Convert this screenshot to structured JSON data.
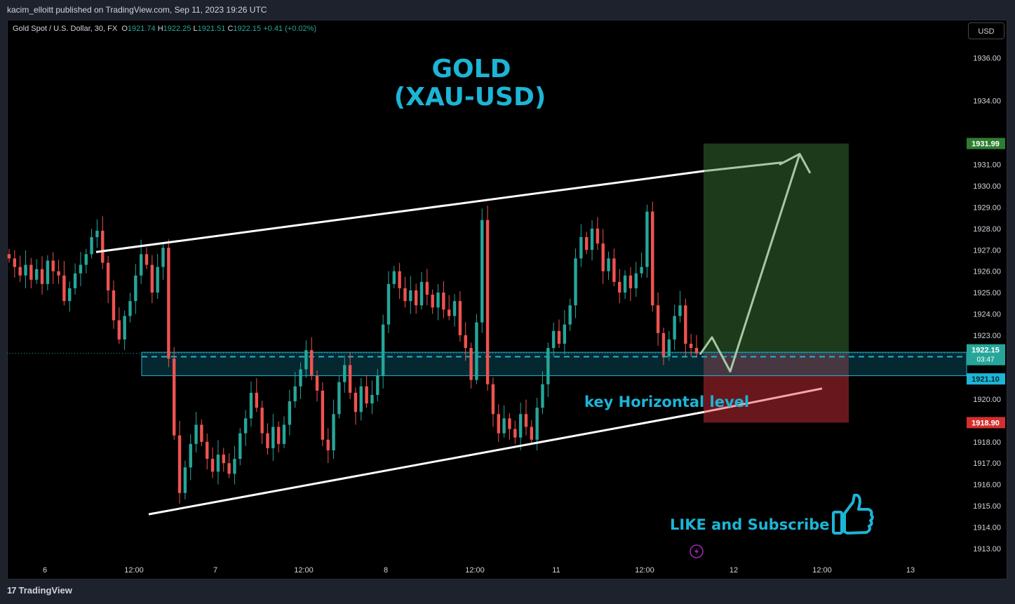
{
  "header": {
    "publisher": "kacim_elloitt published on TradingView.com, Sep 11, 2023 19:26 UTC"
  },
  "legend": {
    "symbol": "Gold Spot / U.S. Dollar, 30, FX",
    "o_label": "O",
    "o": "1921.74",
    "h_label": "H",
    "h": "1922.25",
    "l_label": "L",
    "l": "1921.51",
    "c_label": "C",
    "c": "1922.15",
    "change": "+0.41 (+0.02%)"
  },
  "currency_button": "USD",
  "footer": {
    "brand": "TradingView",
    "brand_mark": "17"
  },
  "annotations": {
    "title_line1": "GOLD",
    "title_line2": "(XAU-USD)",
    "key_level": "key Horizontal level",
    "like": "LIKE and Subscribe"
  },
  "colors": {
    "up": "#26a69a",
    "down": "#ef5350",
    "accent": "#1cb5d6",
    "background": "#000000"
  },
  "chart_data": {
    "type": "candlestick",
    "timeframe": "30",
    "y_ticks": [
      1913,
      1914,
      1915,
      1916,
      1917,
      1918,
      1919,
      1920,
      1921,
      1922,
      1923,
      1924,
      1925,
      1926,
      1927,
      1928,
      1929,
      1930,
      1931,
      1932,
      1933,
      1934,
      1935,
      1936
    ],
    "y_tick_labels": [
      "1913.00",
      "1914.00",
      "1915.00",
      "1916.00",
      "1917.00",
      "1918.00",
      "",
      "1920.00",
      "",
      "",
      "1923.00",
      "1924.00",
      "1925.00",
      "1926.00",
      "1927.00",
      "1928.00",
      "1929.00",
      "1930.00",
      "1931.00",
      "",
      "",
      "1934.00",
      "",
      "1936.00"
    ],
    "ylim": [
      1912.4,
      1937.8
    ],
    "x_ticks": [
      "6",
      "12:00",
      "7",
      "12:00",
      "8",
      "12:00",
      "11",
      "12:00",
      "12",
      "12:00",
      "13"
    ],
    "price_labels": {
      "target": "1931.99",
      "last": "1922.15",
      "countdown": "03:47",
      "level": "1921.99",
      "zone_low": "1921.10",
      "stop": "1918.90"
    },
    "price_levels": {
      "target": 1931.99,
      "last": 1922.15,
      "level": 1921.99,
      "zone_top": 1922.2,
      "zone_low": 1921.1,
      "stop": 1918.9
    },
    "channel": {
      "upper": [
        [
          1926.9,
          1930.7
        ]
      ],
      "lower": [
        [
          1914.6,
          1919.4
        ]
      ]
    },
    "closes": [
      1926.6,
      1926.2,
      1925.8,
      1926.3,
      1925.6,
      1926.1,
      1925.4,
      1926.5,
      1926.0,
      1925.8,
      1924.6,
      1925.2,
      1925.9,
      1926.3,
      1926.8,
      1927.6,
      1927.9,
      1926.4,
      1925.1,
      1923.7,
      1922.8,
      1923.9,
      1924.6,
      1925.8,
      1926.8,
      1926.3,
      1925.0,
      1926.2,
      1927.1,
      1921.9,
      1918.3,
      1915.6,
      1916.8,
      1917.9,
      1918.8,
      1918.0,
      1917.2,
      1916.6,
      1917.4,
      1917.0,
      1916.5,
      1917.2,
      1918.4,
      1919.1,
      1920.3,
      1919.6,
      1918.4,
      1917.7,
      1918.7,
      1917.9,
      1918.8,
      1919.9,
      1920.6,
      1921.4,
      1922.3,
      1921.1,
      1920.4,
      1918.1,
      1917.6,
      1919.3,
      1920.8,
      1921.6,
      1920.3,
      1919.4,
      1920.6,
      1919.8,
      1920.2,
      1921.1,
      1923.5,
      1925.4,
      1926.0,
      1925.2,
      1924.6,
      1925.1,
      1924.4,
      1925.5,
      1924.9,
      1924.3,
      1925.0,
      1924.2,
      1923.9,
      1924.6,
      1923.0,
      1922.4,
      1920.9,
      1923.6,
      1928.4,
      1920.7,
      1919.3,
      1918.4,
      1919.1,
      1918.6,
      1918.2,
      1919.3,
      1918.7,
      1918.1,
      1919.6,
      1920.7,
      1922.4,
      1923.2,
      1922.6,
      1923.5,
      1924.4,
      1926.6,
      1927.6,
      1927.0,
      1928.0,
      1927.3,
      1926.0,
      1926.6,
      1925.5,
      1925.0,
      1925.8,
      1925.2,
      1925.9,
      1926.2,
      1928.8,
      1924.4,
      1923.1,
      1922.0,
      1922.8,
      1923.9,
      1924.4,
      1922.6,
      1922.4,
      1922.15
    ]
  }
}
